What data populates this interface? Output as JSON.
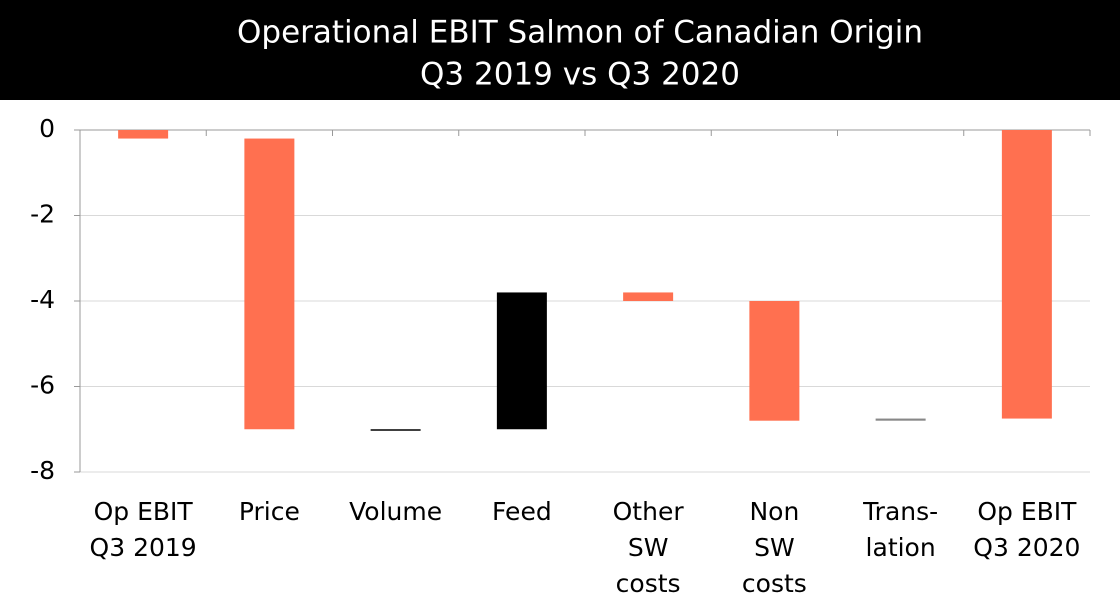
{
  "chart_data": {
    "type": "waterfall",
    "title": [
      "Operational EBIT Salmon of Canadian Origin",
      "Q3 2019 vs Q3 2020"
    ],
    "categories": [
      [
        "Op EBIT",
        "Q3 2019"
      ],
      [
        "Price"
      ],
      [
        "Volume"
      ],
      [
        "Feed"
      ],
      [
        "Other",
        "SW",
        "costs"
      ],
      [
        "Non",
        "SW",
        "costs"
      ],
      [
        "Trans-",
        "lation"
      ],
      [
        "Op EBIT",
        "Q3 2020"
      ]
    ],
    "values": [
      -0.2,
      -6.8,
      0.0,
      3.2,
      -0.2,
      -2.8,
      0.05,
      -6.75
    ],
    "is_total": [
      true,
      false,
      false,
      false,
      false,
      false,
      false,
      true
    ],
    "colors": [
      "#ff7050",
      "#ff7050",
      "#000000",
      "#000000",
      "#ff7050",
      "#ff7050",
      "#888888",
      "#ff7050"
    ],
    "ylim": [
      -8,
      0
    ],
    "yticks": [
      0,
      -2,
      -4,
      -6,
      -8
    ],
    "grid": true
  }
}
